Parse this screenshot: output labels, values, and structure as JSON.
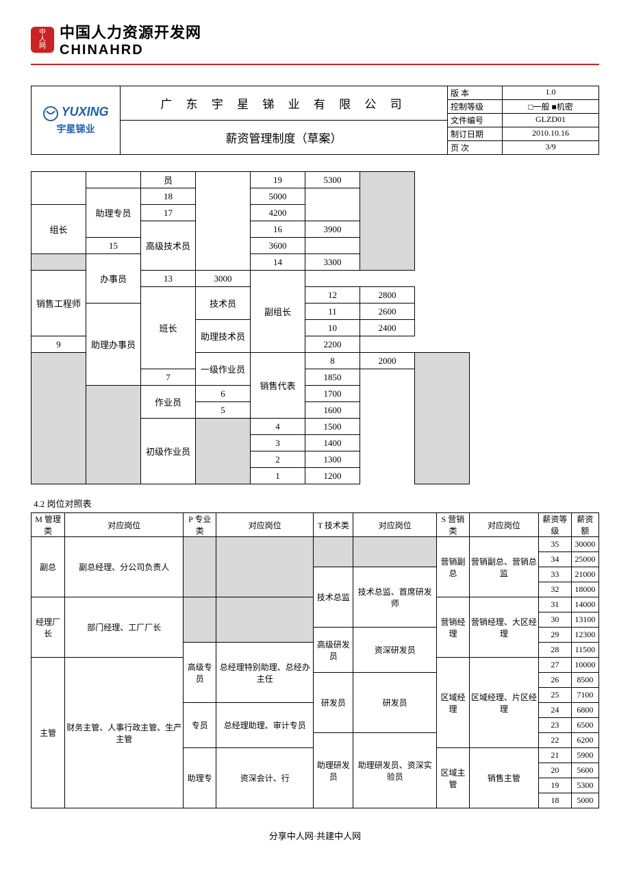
{
  "site": {
    "logo_lines": [
      "中",
      "人",
      "网"
    ],
    "title_cn": "中国人力资源开发网",
    "title_en": "CHINAHRD"
  },
  "doc": {
    "company_logo_en": "YUXING",
    "company_logo_cn": "宇星锑业",
    "company_name": "广 东 宇 星 锑 业 有 限 公 司",
    "doc_title": "薪资管理制度（草案）",
    "meta": {
      "version_label": "版    本",
      "version": "1.0",
      "control_label": "控制等级",
      "control": "□一般 ■机密",
      "fileno_label": "文件编号",
      "fileno": "GLZD01",
      "date_label": "制订日期",
      "date": "2010.10.16",
      "page_label": "页    次",
      "page": "3/9"
    }
  },
  "table1": {
    "rows": [
      {
        "a": "",
        "b": "",
        "c": "员",
        "d": "",
        "e": "19",
        "f": "5300",
        "g": "",
        "a_rs": 2,
        "b_rs": 1,
        "c_rs": 1,
        "d_rs": 6,
        "e_rs": 1,
        "g_rs": 6,
        "g_shade": true
      },
      {
        "e": "18",
        "f": "5000",
        "b": "助理专员",
        "b_rs": 3
      },
      {
        "e": "17",
        "f": "4200",
        "a": "组长",
        "a_rs": 3
      },
      {
        "e": "16",
        "f": "3900",
        "c": "高级技术员",
        "c_rs": 3
      },
      {
        "e": "15",
        "f": "3600"
      },
      {
        "e": "14",
        "f": "3300",
        "b": "办事员",
        "b_rs": 3,
        "a": "",
        "a_rs": 1,
        "a_shade": true
      },
      {
        "e": "13",
        "f": "3000",
        "d": "销售工程师",
        "d_rs": 4,
        "g": "副组长",
        "g_rs": 5
      },
      {
        "e": "12",
        "f": "2800",
        "c": "技术员",
        "c_rs": 2,
        "a": "班长",
        "a_rs": 5
      },
      {
        "e": "11",
        "f": "2600",
        "b": "助理办事员",
        "b_rs": 5
      },
      {
        "e": "10",
        "f": "2400",
        "c": "助理技术员",
        "c_rs": 2
      },
      {
        "e": "9",
        "f": "2200"
      },
      {
        "e": "8",
        "f": "2000",
        "d": "销售代表",
        "d_rs": 4,
        "c": "一级作业员",
        "c_rs": 2,
        "g": "",
        "g_rs": 8,
        "g_shade": true,
        "a": "",
        "a_rs": 8,
        "a_shade": true
      },
      {
        "e": "7",
        "f": "1850"
      },
      {
        "e": "6",
        "f": "1700",
        "c": "作业员",
        "c_rs": 2,
        "b": "",
        "b_rs": 6,
        "b_shade": true
      },
      {
        "e": "5",
        "f": "1600"
      },
      {
        "e": "4",
        "f": "1500",
        "d": "",
        "d_rs": 4,
        "d_shade": true,
        "c": "初级作业员",
        "c_rs": 4
      },
      {
        "e": "3",
        "f": "1400"
      },
      {
        "e": "2",
        "f": "1300"
      },
      {
        "e": "1",
        "f": "1200"
      }
    ]
  },
  "section2_caption": "4.2 岗位对照表",
  "table2": {
    "headers": [
      "M 管理类",
      "对应岗位",
      "P 专业类",
      "对应岗位",
      "T 技术类",
      "对应岗位",
      "S 营销类",
      "对应岗位",
      "薪资等级",
      "薪资额"
    ],
    "rows": [
      {
        "m": "副总",
        "m_rs": 4,
        "mp": "副总经理、分公司负责人",
        "mp_rs": 4,
        "p": "",
        "p_rs": 4,
        "p_sh": true,
        "pp": "",
        "pp_rs": 4,
        "pp_sh": true,
        "t": "",
        "t_rs": 2,
        "t_sh": true,
        "tp": "",
        "tp_rs": 2,
        "tp_sh": true,
        "s": "营销副总",
        "s_rs": 4,
        "sp": "营销副总、营销总监",
        "sp_rs": 4,
        "lv": "35",
        "amt": "30000"
      },
      {
        "lv": "34",
        "amt": "25000"
      },
      {
        "lv": "33",
        "amt": "21000",
        "t": "技术总监",
        "t_rs": 4,
        "tp": "技术总监、首席研发师",
        "tp_rs": 4
      },
      {
        "lv": "32",
        "amt": "18000"
      },
      {
        "m": "经理厂长",
        "m_rs": 4,
        "mp": "部门经理、工厂厂长",
        "mp_rs": 4,
        "p": "",
        "p_rs": 3,
        "p_sh": true,
        "pp": "",
        "pp_rs": 3,
        "pp_sh": true,
        "s": "营销经理",
        "s_rs": 4,
        "sp": "营销经理、大区经理",
        "sp_rs": 4,
        "lv": "31",
        "amt": "14000"
      },
      {
        "lv": "30",
        "amt": "13100"
      },
      {
        "lv": "29",
        "amt": "12300",
        "t": "高级研发员",
        "t_rs": 3,
        "tp": "资深研发员",
        "tp_rs": 3
      },
      {
        "lv": "28",
        "amt": "11500",
        "p": "高级专员",
        "p_rs": 4,
        "pp": "总经理特别助理、总经办主任",
        "pp_rs": 4
      },
      {
        "m": "主管",
        "m_rs": 10,
        "mp": "财务主管、人事行政主管、生产主管",
        "mp_rs": 10,
        "s": "区域经理",
        "s_rs": 6,
        "sp": "区域经理、片区经理",
        "sp_rs": 6,
        "lv": "27",
        "amt": "10000"
      },
      {
        "lv": "26",
        "amt": "8500",
        "t": "研发员",
        "t_rs": 4,
        "tp": "研发员",
        "tp_rs": 4
      },
      {
        "lv": "25",
        "amt": "7100"
      },
      {
        "lv": "24",
        "amt": "6800",
        "p": "专员",
        "p_rs": 3,
        "pp": "总经理助理、审计专员",
        "pp_rs": 3
      },
      {
        "lv": "23",
        "amt": "6500"
      },
      {
        "lv": "22",
        "amt": "6200",
        "t": "助理研发员",
        "t_rs": 5,
        "tp": "助理研发员、资深实验员",
        "tp_rs": 5
      },
      {
        "lv": "21",
        "amt": "5900",
        "p": "助理专",
        "p_rs": 4,
        "pp": "资深会计、行",
        "pp_rs": 4,
        "s": "区域主管",
        "s_rs": 4,
        "sp": "销售主管",
        "sp_rs": 4
      },
      {
        "lv": "20",
        "amt": "5600"
      },
      {
        "lv": "19",
        "amt": "5300"
      },
      {
        "lv": "18",
        "amt": "5000"
      }
    ]
  },
  "footer": "分享中人网·共建中人网"
}
